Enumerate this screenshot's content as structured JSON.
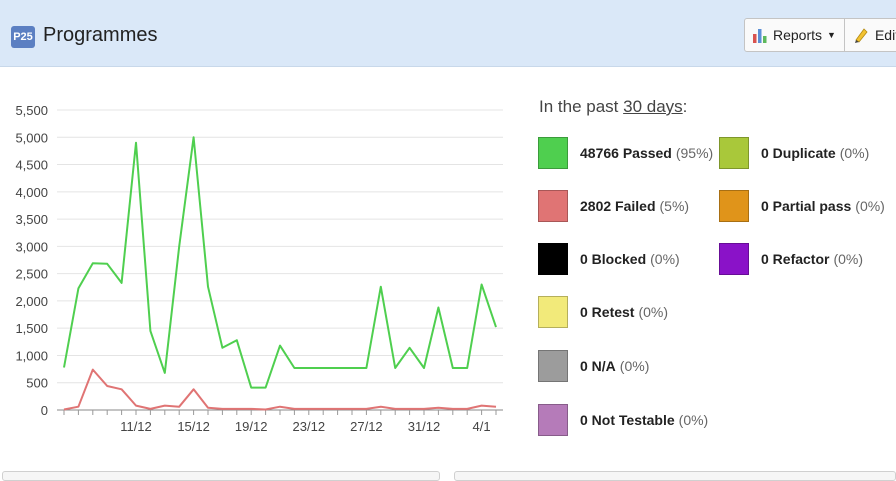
{
  "header": {
    "project_badge": "P25",
    "title": "Programmes",
    "reports_label": "Reports",
    "edit_label": "Edit"
  },
  "legend": {
    "prefix": "In the past ",
    "period_link": "30 days",
    "suffix": ":",
    "items": [
      {
        "label": "48766 Passed",
        "pct": "(95%)",
        "color": "#4fcf4f"
      },
      {
        "label": "2802 Failed",
        "pct": "(5%)",
        "color": "#e07474"
      },
      {
        "label": "0 Blocked",
        "pct": "(0%)",
        "color": "#000000"
      },
      {
        "label": "0 Retest",
        "pct": "(0%)",
        "color": "#f2ea7a"
      },
      {
        "label": "0 N/A",
        "pct": "(0%)",
        "color": "#9c9c9c"
      },
      {
        "label": "0 Not Testable",
        "pct": "(0%)",
        "color": "#b57bb9"
      },
      {
        "label": "0 Duplicate",
        "pct": "(0%)",
        "color": "#a9c83a"
      },
      {
        "label": "0 Partial pass",
        "pct": "(0%)",
        "color": "#e0941a"
      },
      {
        "label": "0 Refactor",
        "pct": "(0%)",
        "color": "#8a12c8"
      }
    ]
  },
  "chart_data": {
    "type": "line",
    "ylim": [
      0,
      5500
    ],
    "y_ticks": [
      0,
      500,
      1000,
      1500,
      2000,
      2500,
      3000,
      3500,
      4000,
      4500,
      5000,
      5500
    ],
    "y_tick_labels": [
      "0",
      "500",
      "1,000",
      "1,500",
      "2,000",
      "2,500",
      "3,000",
      "3,500",
      "4,000",
      "4,500",
      "5,000",
      "5,500"
    ],
    "x_tick_labels": [
      {
        "index": 5,
        "label": "11/12"
      },
      {
        "index": 9,
        "label": "15/12"
      },
      {
        "index": 13,
        "label": "19/12"
      },
      {
        "index": 17,
        "label": "23/12"
      },
      {
        "index": 21,
        "label": "27/12"
      },
      {
        "index": 25,
        "label": "31/12"
      },
      {
        "index": 29,
        "label": "4/1"
      }
    ],
    "points_count": 31,
    "series": [
      {
        "name": "Passed",
        "color": "#4fcf4f",
        "values": [
          780,
          2230,
          2690,
          2680,
          2330,
          4900,
          1450,
          680,
          3000,
          5000,
          2260,
          1140,
          1280,
          410,
          410,
          1180,
          770,
          770,
          770,
          770,
          770,
          770,
          2260,
          770,
          1140,
          770,
          1880,
          770,
          770,
          2300,
          1520
        ]
      },
      {
        "name": "Failed",
        "color": "#e07474",
        "values": [
          10,
          60,
          740,
          440,
          380,
          80,
          20,
          80,
          60,
          380,
          40,
          20,
          20,
          20,
          10,
          60,
          20,
          20,
          20,
          20,
          20,
          20,
          60,
          20,
          20,
          20,
          40,
          20,
          20,
          80,
          60
        ]
      }
    ]
  }
}
